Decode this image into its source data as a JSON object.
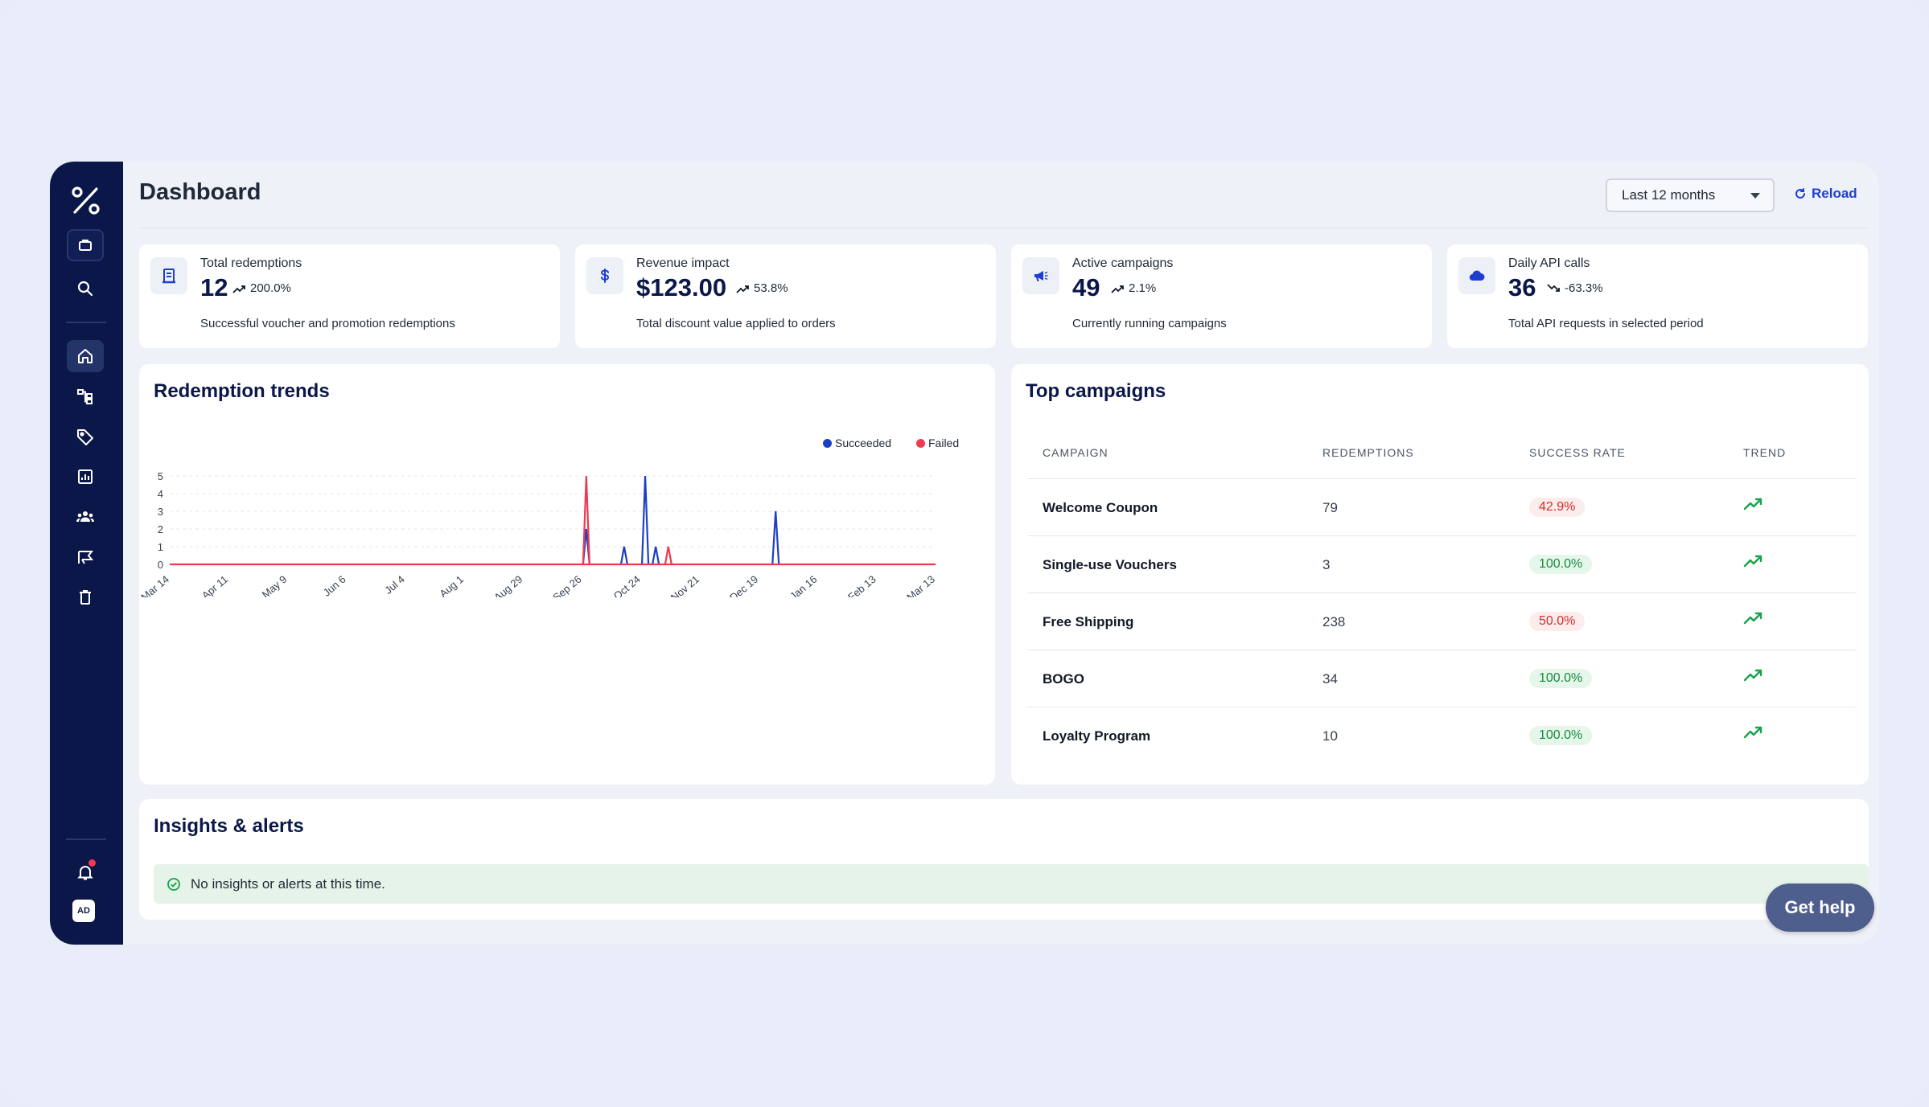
{
  "header": {
    "title": "Dashboard",
    "period": "Last 12 months",
    "reload_label": "Reload"
  },
  "sidebar": {
    "items": [
      {
        "icon": "briefcase-icon"
      },
      {
        "icon": "search-icon"
      },
      {
        "icon": "home-icon",
        "active": true
      },
      {
        "icon": "sitemap-icon"
      },
      {
        "icon": "tag-icon"
      },
      {
        "icon": "report-icon"
      },
      {
        "icon": "users-icon"
      },
      {
        "icon": "campaign-icon"
      },
      {
        "icon": "trash-icon"
      }
    ],
    "avatar_initials": "AD",
    "notification_dot_color": "#ef3a4f"
  },
  "stats": [
    {
      "label": "Total redemptions",
      "value": "12",
      "change": "200.0%",
      "trend": "up",
      "description": "Successful voucher and promotion redemptions",
      "icon": "receipt-icon"
    },
    {
      "label": "Revenue impact",
      "value": "$123.00",
      "change": "53.8%",
      "trend": "up",
      "description": "Total discount value applied to orders",
      "icon": "dollar-icon"
    },
    {
      "label": "Active campaigns",
      "value": "49",
      "change": "2.1%",
      "trend": "up",
      "description": "Currently running campaigns",
      "icon": "megaphone-icon"
    },
    {
      "label": "Daily API calls",
      "value": "36",
      "change": "-63.3%",
      "trend": "down",
      "description": "Total API requests in selected period",
      "icon": "cloud-icon"
    }
  ],
  "redemption_trends": {
    "title": "Redemption trends",
    "legend": [
      "Succeeded",
      "Failed"
    ]
  },
  "chart_data": {
    "type": "line",
    "x_ticks": [
      "Mar 14",
      "Apr 11",
      "May 9",
      "Jun 6",
      "Jul 4",
      "Aug 1",
      "Aug 29",
      "Sep 26",
      "Oct 24",
      "Nov 21",
      "Dec 19",
      "Jan 16",
      "Feb 13",
      "Mar 13"
    ],
    "y_ticks": [
      "0",
      "1",
      "2",
      "3",
      "4",
      "5"
    ],
    "ylim": [
      0,
      5
    ],
    "grid": true,
    "legend_position": "top-right",
    "series": [
      {
        "name": "Succeeded",
        "color": "#1d3fc4",
        "points": [
          [
            "Sep 28",
            2
          ],
          [
            "Oct 16",
            1
          ],
          [
            "Oct 26",
            5
          ],
          [
            "Oct 31",
            1
          ],
          [
            "Dec 27",
            3
          ]
        ]
      },
      {
        "name": "Failed",
        "color": "#ef3a4f",
        "points": [
          [
            "Sep 28",
            5
          ],
          [
            "Nov 6",
            1
          ]
        ]
      }
    ]
  },
  "top_campaigns": {
    "title": "Top campaigns",
    "columns": [
      "CAMPAIGN",
      "REDEMPTIONS",
      "SUCCESS RATE",
      "TREND"
    ],
    "rows": [
      {
        "name": "Welcome Coupon",
        "redemptions": "79",
        "rate": "42.9%",
        "status": "bad"
      },
      {
        "name": "Single-use Vouchers",
        "redemptions": "3",
        "rate": "100.0%",
        "status": "good"
      },
      {
        "name": "Free Shipping",
        "redemptions": "238",
        "rate": "50.0%",
        "status": "bad"
      },
      {
        "name": "BOGO",
        "redemptions": "34",
        "rate": "100.0%",
        "status": "good"
      },
      {
        "name": "Loyalty Program",
        "redemptions": "10",
        "rate": "100.0%",
        "status": "good"
      }
    ]
  },
  "insights": {
    "title": "Insights & alerts",
    "message": "No insights or alerts at this time."
  },
  "help_button": "Get help"
}
